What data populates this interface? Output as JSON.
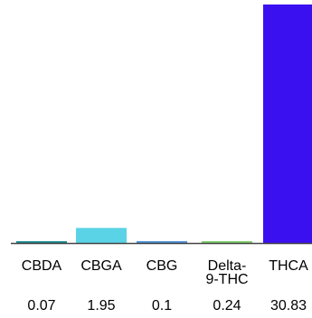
{
  "chart_data": {
    "type": "bar",
    "categories": [
      "CBDA",
      "CBGA",
      "CBG",
      "Delta-9-THC",
      "THCA"
    ],
    "category_lines": [
      [
        "CBDA"
      ],
      [
        "CBGA"
      ],
      [
        "CBG"
      ],
      [
        "Delta-",
        "9-THC"
      ],
      [
        "THCA"
      ]
    ],
    "values": [
      0.07,
      1.95,
      0.1,
      0.24,
      30.83
    ],
    "value_labels": [
      "0.07",
      "1.95",
      "0.1",
      "0.24",
      "30.83"
    ],
    "colors": [
      "#1a8a8f",
      "#5ad3e6",
      "#4b8fd4",
      "#7fcf6a",
      "#3a10f0"
    ],
    "axis_color": "#444444",
    "title": "",
    "xlabel": "",
    "ylabel": "",
    "ylim": [
      0,
      30.83
    ],
    "grid": false,
    "legend": "none"
  }
}
